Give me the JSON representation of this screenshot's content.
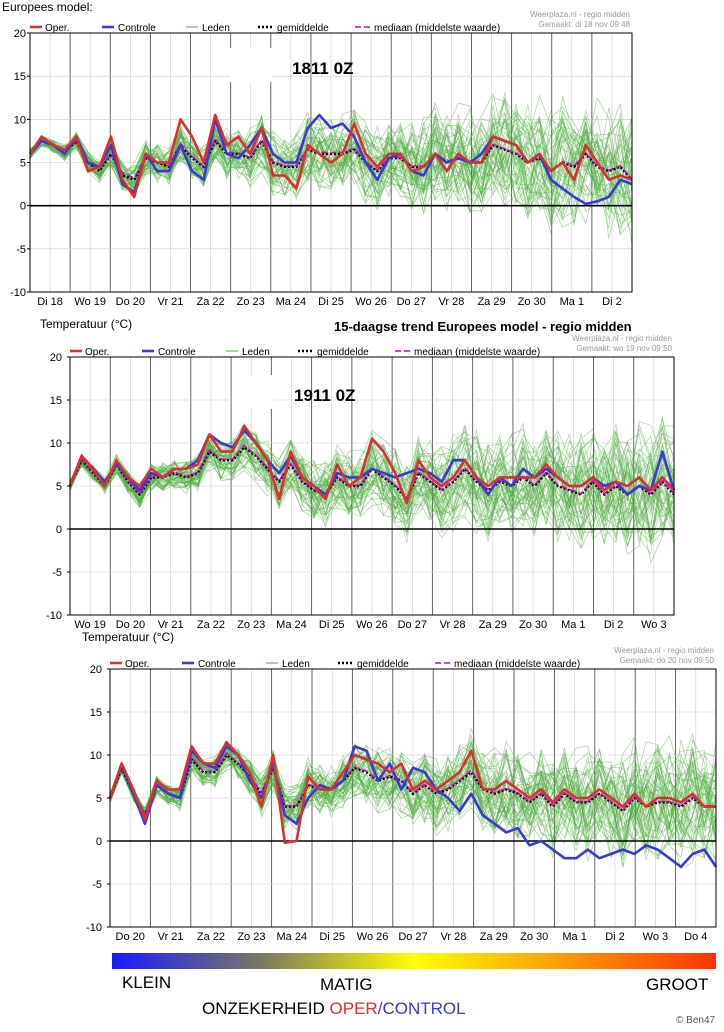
{
  "header": {
    "top_left": "Europees model:",
    "partial_y_title_2": "Temperatuur (°C)",
    "partial_title_2": "15-daagse trend Europees model - regio midden",
    "partial_y_title_3": "Temperatuur (°C)"
  },
  "legend": {
    "oper": "Oper.",
    "controle": "Controle",
    "leden": "Leden",
    "gemiddelde": "gemiddelde",
    "mediaan": "mediaan (middelste waarde)"
  },
  "colors": {
    "oper": "#d93030",
    "controle": "#3a3ad0",
    "leden": "#4caa3c",
    "gemiddelde": "#000000",
    "mediaan": "#cc00cc"
  },
  "footer": {
    "klein": "KLEIN",
    "matig": "MATIG",
    "groot": "GROOT",
    "onzekerheid": "ONZEKERHEID",
    "oper": "OPER",
    "slash": "/",
    "control": "CONTROL",
    "credit": "© Ben47"
  },
  "chart_data": [
    {
      "type": "line",
      "run_label": "1811 0Z",
      "source": "Weerplaza.nl - regio midden",
      "made": "Gemaakt: di 18 nov 09:48",
      "ylim": [
        -10,
        20
      ],
      "yticks": [
        "20",
        "15",
        "10",
        "5",
        "0",
        "-5",
        "-10"
      ],
      "x_labels": [
        "Di 18",
        "Wo 19",
        "Do 20",
        "Vr 21",
        "Za 22",
        "Zo 23",
        "Ma 24",
        "Di 25",
        "Wo 26",
        "Do 27",
        "Vr 28",
        "Za 29",
        "Zo 30",
        "Ma 1",
        "Di 2"
      ],
      "series": [
        {
          "name": "Oper.",
          "values": [
            6,
            8,
            7,
            6.5,
            8,
            4,
            4.5,
            8,
            3,
            1,
            6,
            5,
            5,
            10,
            8,
            5,
            10.5,
            7,
            8,
            6,
            9,
            3.5,
            3.5,
            2,
            7,
            6,
            5,
            6,
            9.5,
            6,
            4.5,
            6,
            6,
            4,
            4.5,
            6,
            4,
            6,
            5,
            5,
            8,
            7.5,
            7,
            5,
            6,
            4,
            5,
            3,
            7,
            5,
            3,
            3.5,
            3
          ]
        },
        {
          "name": "Controle",
          "values": [
            6,
            7.5,
            7,
            6,
            8,
            5,
            4.5,
            7,
            2.5,
            1.5,
            6,
            4,
            4,
            7,
            4,
            3,
            10,
            6,
            5.5,
            7,
            9,
            6,
            5,
            5,
            9,
            10.5,
            9,
            9.5,
            8,
            5,
            3,
            5.5,
            6,
            4,
            3.5,
            6,
            5,
            5.5,
            5,
            6,
            8,
            7.5,
            7,
            5,
            6,
            3,
            2,
            1,
            0.2,
            0.5,
            1,
            3,
            2.5
          ]
        },
        {
          "name": "gemiddelde",
          "values": [
            6,
            7.5,
            7,
            6.2,
            7.5,
            5,
            4,
            6,
            3.5,
            3,
            5.5,
            5,
            4.5,
            7,
            5.5,
            4.5,
            7.5,
            6,
            6,
            5.5,
            7.5,
            5,
            4.5,
            4.5,
            6.5,
            6,
            6,
            6,
            6.5,
            5,
            4,
            5.5,
            5.5,
            4.5,
            4.5,
            6,
            5,
            5.5,
            5,
            5,
            7,
            6.5,
            6,
            5,
            5.5,
            4,
            5,
            4.5,
            6,
            4.5,
            4,
            4.5,
            3
          ]
        },
        {
          "name": "mediaan (middelste waarde)",
          "values": [
            6,
            7.5,
            7,
            6.2,
            7.5,
            5,
            4.2,
            6,
            3.8,
            3.2,
            5.6,
            5.1,
            4.6,
            7.2,
            5.7,
            4.6,
            7.7,
            6.2,
            6.1,
            5.6,
            7.6,
            5.1,
            4.6,
            4.6,
            6.6,
            6.2,
            6.1,
            6.2,
            6.6,
            5.1,
            4.1,
            5.6,
            5.6,
            4.6,
            4.6,
            6.1,
            5.1,
            5.6,
            5.1,
            5.1,
            7.1,
            6.6,
            6.1,
            5.1,
            5.6,
            4.1,
            5.1,
            4.6,
            6.1,
            4.6,
            4.1,
            4.6,
            3.1
          ]
        }
      ]
    },
    {
      "type": "line",
      "run_label": "1911 0Z",
      "source": "Weerplaza.nl - regio midden",
      "made": "Gemaakt: wo 19 nov 09:50",
      "ylim": [
        -10,
        20
      ],
      "yticks": [
        "20",
        "15",
        "10",
        "5",
        "0",
        "-5",
        "-10"
      ],
      "x_labels": [
        "Wo 19",
        "Do 20",
        "Vr 21",
        "Za 22",
        "Zo 23",
        "Ma 24",
        "Di 25",
        "Wo 26",
        "Do 27",
        "Vr 28",
        "Za 29",
        "Zo 30",
        "Ma 1",
        "Di 2",
        "Wo 3"
      ],
      "series": [
        {
          "name": "Oper.",
          "values": [
            5,
            8.5,
            7,
            5,
            8,
            6,
            5,
            7,
            6,
            7,
            7,
            7.5,
            11,
            9,
            9,
            12,
            10,
            8,
            3.5,
            9,
            6,
            5,
            3.5,
            7.5,
            5,
            6,
            10.5,
            9,
            6.5,
            3,
            8,
            6,
            5,
            6,
            8,
            6,
            5,
            6,
            6,
            6,
            6,
            7.5,
            6,
            5,
            5,
            6,
            4.5,
            5.5,
            5,
            6,
            4.5,
            6,
            4.5
          ]
        },
        {
          "name": "Controle",
          "values": [
            5,
            8.5,
            7,
            5.5,
            7.5,
            6,
            4.5,
            6.5,
            6,
            7,
            7,
            8,
            11,
            10,
            9.5,
            11.5,
            10,
            8,
            6.5,
            8.5,
            6,
            5,
            4,
            6.5,
            6,
            6,
            7,
            6.5,
            6,
            6.5,
            7,
            6.5,
            5.5,
            8,
            8,
            6,
            4,
            6,
            5,
            7,
            6,
            7,
            6,
            5,
            5,
            6,
            5,
            5.5,
            4,
            5,
            4.5,
            9,
            4.5
          ]
        },
        {
          "name": "gemiddelde",
          "values": [
            5,
            8,
            6.5,
            5,
            7.5,
            5.5,
            4,
            6,
            6,
            6.5,
            6,
            6.5,
            9,
            8,
            8,
            9.5,
            8.5,
            7,
            5.5,
            7.5,
            5.5,
            4.5,
            4,
            6,
            5,
            5,
            7,
            6,
            5,
            3.5,
            6.5,
            5.5,
            4.5,
            5.5,
            7,
            5.5,
            4.5,
            5.5,
            5,
            6,
            5,
            6.5,
            5,
            4.5,
            4,
            5.5,
            4,
            5,
            4,
            5,
            4,
            5.5,
            4
          ]
        },
        {
          "name": "mediaan (middelste waarde)",
          "values": [
            5,
            8,
            6.6,
            5.1,
            7.6,
            5.6,
            4.1,
            6.1,
            6.1,
            6.6,
            6.1,
            6.6,
            9.2,
            8.1,
            8.1,
            9.7,
            8.6,
            7.1,
            5.6,
            7.6,
            5.6,
            4.6,
            4.1,
            6.1,
            5.1,
            5.1,
            7.1,
            6.1,
            5.1,
            3.6,
            6.6,
            5.6,
            4.6,
            5.6,
            7.1,
            5.6,
            4.6,
            5.6,
            5.1,
            6.1,
            5.1,
            6.6,
            5.1,
            4.6,
            4.1,
            5.6,
            4.1,
            5.1,
            4.1,
            5.1,
            4.1,
            5.6,
            4.1
          ]
        }
      ]
    },
    {
      "type": "line",
      "source": "Weerplaza.nl - regio midden",
      "made": "Gemaakt: do 20 nov 09:50",
      "ylim": [
        -10,
        20
      ],
      "yticks": [
        "20",
        "15",
        "10",
        "5",
        "0",
        "-5",
        "-10"
      ],
      "x_labels": [
        "Do 20",
        "Vr 21",
        "Za 22",
        "Zo 23",
        "Ma 24",
        "Di 25",
        "Wo 26",
        "Do 27",
        "Vr 28",
        "Za 29",
        "Zo 30",
        "Ma 1",
        "Di 2",
        "Wo 3",
        "Do 4"
      ],
      "series": [
        {
          "name": "Oper.",
          "values": [
            5,
            9,
            6,
            2.5,
            7,
            6,
            6,
            11,
            9,
            9,
            11.5,
            10,
            8,
            4,
            10,
            -0.2,
            0,
            7.5,
            6,
            6,
            8,
            10,
            9.5,
            9,
            8,
            9,
            6,
            7,
            6,
            7,
            8,
            10.5,
            6,
            6,
            7,
            6,
            5,
            6,
            4.5,
            6,
            5,
            5,
            6,
            5,
            4,
            5.5,
            4,
            5,
            5,
            4.5,
            5.5,
            4,
            4
          ]
        },
        {
          "name": "Controle",
          "values": [
            5,
            9,
            5.5,
            2,
            6.5,
            5.5,
            5,
            10.5,
            9,
            8.5,
            11,
            10,
            7,
            5,
            9,
            3,
            2,
            5,
            6.5,
            6,
            7,
            11,
            10.5,
            7,
            9,
            6,
            8.5,
            8,
            6,
            5,
            3.5,
            5.5,
            3,
            2,
            1,
            1.5,
            -0.5,
            0,
            -1,
            -2,
            -2,
            -1,
            -2,
            -1.5,
            -1,
            -1.5,
            -0.5,
            -1,
            -2,
            -3,
            -1.5,
            -1,
            -3
          ]
        },
        {
          "name": "gemiddelde",
          "values": [
            5,
            8.5,
            5.5,
            3,
            6.5,
            5.5,
            5,
            9.5,
            8,
            8,
            10,
            9,
            7.5,
            5.5,
            8.5,
            4,
            4,
            6.5,
            6,
            6,
            7,
            8.5,
            8,
            7,
            7.5,
            7,
            5.5,
            6.5,
            5.5,
            6,
            7,
            8,
            6,
            5.5,
            6,
            5.5,
            4.5,
            5.5,
            4,
            5.5,
            4.5,
            4.5,
            5.5,
            4.5,
            3.5,
            5,
            4,
            4.5,
            4.5,
            4,
            5,
            4,
            4
          ]
        },
        {
          "name": "mediaan (middelste waarde)",
          "values": [
            5,
            8.6,
            5.6,
            3.1,
            6.6,
            5.6,
            5.1,
            9.7,
            8.1,
            8.1,
            10.2,
            9.1,
            7.6,
            5.6,
            8.6,
            4.1,
            4.1,
            6.6,
            6.1,
            6.1,
            7.1,
            8.6,
            8.1,
            7.1,
            7.6,
            7.1,
            5.6,
            6.6,
            5.6,
            6.1,
            7.1,
            8.2,
            6.1,
            5.6,
            6.1,
            5.6,
            4.6,
            5.6,
            4.1,
            5.6,
            4.6,
            4.6,
            5.6,
            4.6,
            3.6,
            5.1,
            4.1,
            4.6,
            4.6,
            4.1,
            5.1,
            4.1,
            4.1
          ]
        }
      ]
    }
  ]
}
